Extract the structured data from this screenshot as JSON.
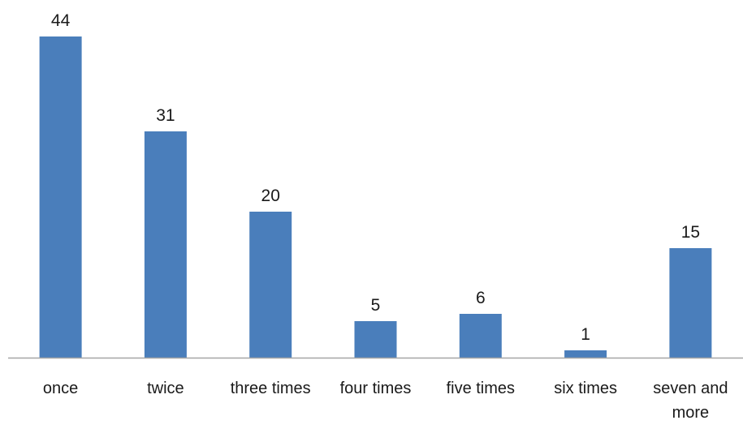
{
  "chart_data": {
    "type": "bar",
    "categories": [
      [
        "once"
      ],
      [
        "twice"
      ],
      [
        "three times"
      ],
      [
        "four times"
      ],
      [
        "five times"
      ],
      [
        "six times"
      ],
      [
        "seven and",
        "more"
      ]
    ],
    "values": [
      44,
      31,
      20,
      5,
      6,
      1,
      15
    ],
    "data_labels": [
      "44",
      "31",
      "20",
      "5",
      "6",
      "1",
      "15"
    ],
    "bar_color": "#4a7ebb",
    "axis_color": "#a6a6a6",
    "ylim": [
      0,
      44
    ],
    "grid": false,
    "legend": "none",
    "y_axis_shown": false
  }
}
